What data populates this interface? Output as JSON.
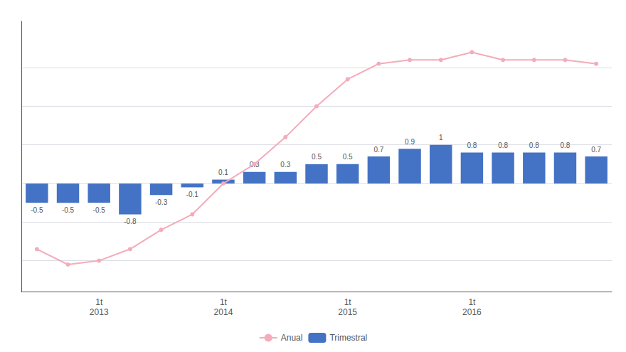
{
  "chart_data": {
    "type": "bar",
    "categories": [
      null,
      null,
      "1t\n2013",
      null,
      null,
      null,
      "1t\n2014",
      null,
      null,
      null,
      "1t\n2015",
      null,
      null,
      null,
      "1t\n2016",
      null,
      null,
      null,
      null
    ],
    "series": [
      {
        "name": "Anual",
        "type": "line",
        "color": "#F4ABBA",
        "marker": "circle",
        "values": [
          -1.7,
          -2.1,
          -2.0,
          -1.7,
          -1.2,
          -0.8,
          0.0,
          0.5,
          1.2,
          2.0,
          2.7,
          3.1,
          3.2,
          3.2,
          3.4,
          3.2,
          3.2,
          3.2,
          3.1
        ]
      },
      {
        "name": "Trimestral",
        "type": "bar",
        "color": "#4472C4",
        "data_labels": true,
        "values": [
          -0.5,
          -0.5,
          -0.5,
          -0.8,
          -0.3,
          -0.1,
          0.1,
          0.3,
          0.3,
          0.5,
          0.5,
          0.7,
          0.9,
          1.0,
          0.8,
          0.8,
          0.8,
          0.8,
          0.7
        ]
      }
    ],
    "ylim": [
      -2.8,
      4.2
    ],
    "yticks": [
      -2,
      -1,
      0,
      1,
      2,
      3
    ],
    "grid": true,
    "legend": "bottom",
    "tick_labels": "x"
  }
}
